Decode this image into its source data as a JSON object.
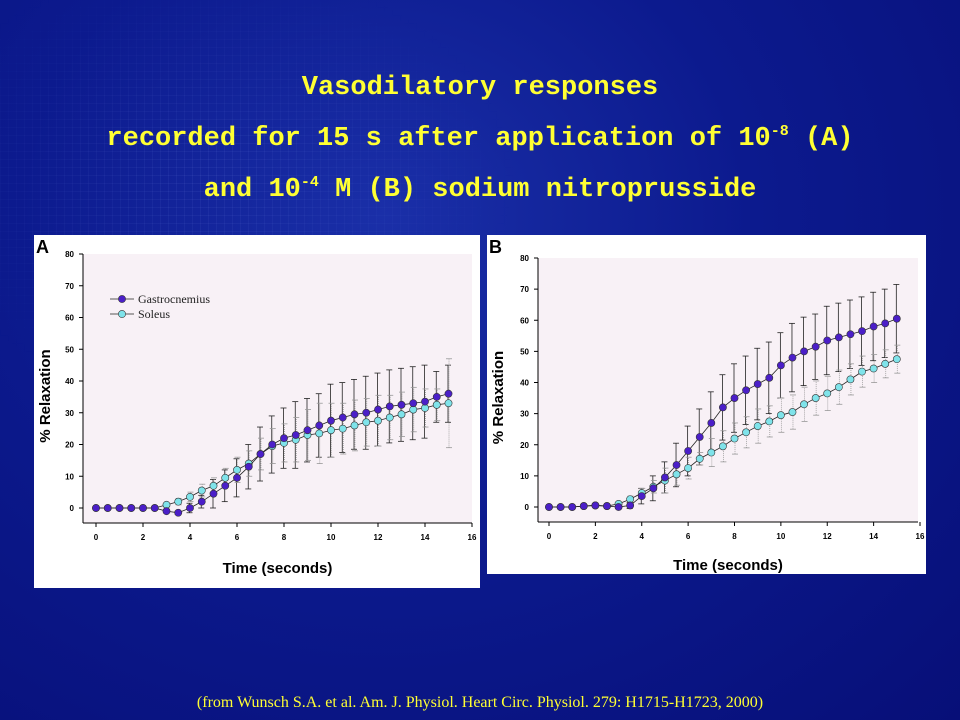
{
  "title": {
    "line1": "Vasodilatory responses",
    "line2_pre": "recorded for 15 s after application of 10",
    "line2_exp": "-8",
    "line2_post": " (A)",
    "line3_pre": "and 10",
    "line3_exp": "-4",
    "line3_post": " M (B) sodium nitroprusside"
  },
  "citation": "(from Wunsch S.A. et al. Am. J. Physiol. Heart Circ. Physiol. 279: H1715-H1723, 2000)",
  "colors": {
    "gastrocnemius": "#4b1fc8",
    "soleus": "#7fe3ea",
    "title": "#ffff33",
    "plot_bg": "#f8f1f6"
  },
  "chart_data": [
    {
      "type": "line",
      "panel_label": "A",
      "xlabel": "Time (seconds)",
      "ylabel": "% Relaxation",
      "xlim": [
        0,
        16
      ],
      "ylim": [
        -5,
        80
      ],
      "xticks": [
        0,
        2,
        4,
        6,
        8,
        10,
        12,
        14,
        16
      ],
      "yticks": [
        0,
        10,
        20,
        30,
        40,
        50,
        60,
        70,
        80
      ],
      "legend": "top-left",
      "grid": false,
      "x": [
        0,
        0.5,
        1,
        1.5,
        2,
        2.5,
        3,
        3.5,
        4,
        4.5,
        5,
        5.5,
        6,
        6.5,
        7,
        7.5,
        8,
        8.5,
        9,
        9.5,
        10,
        10.5,
        11,
        11.5,
        12,
        12.5,
        13,
        13.5,
        14,
        14.5,
        15
      ],
      "series": [
        {
          "name": "Gastrocnemius",
          "values": [
            0,
            0,
            0,
            0,
            0,
            0,
            -1,
            -1.5,
            0,
            2,
            4.5,
            7,
            9.5,
            13,
            17,
            20,
            22,
            23,
            24.5,
            26,
            27.5,
            28.5,
            29.5,
            30,
            31,
            32,
            32.5,
            33,
            33.5,
            35,
            36
          ],
          "error": [
            0,
            0,
            0,
            0,
            0,
            0,
            0.5,
            0.5,
            1.5,
            2,
            4.5,
            5,
            6,
            7,
            8.5,
            9,
            9.5,
            10.5,
            10,
            10,
            11.5,
            11,
            11,
            11.5,
            11.5,
            11.5,
            11.5,
            11.5,
            11.5,
            8,
            9
          ]
        },
        {
          "name": "Soleus",
          "values": [
            0,
            0,
            0,
            0,
            0,
            0,
            1,
            2,
            3.5,
            5.5,
            7,
            9.5,
            12,
            14,
            17,
            19.5,
            20.5,
            21.5,
            23,
            23.5,
            24.5,
            25,
            26,
            27,
            27.5,
            28.5,
            29.5,
            31,
            31.5,
            32.5,
            33
          ],
          "error": [
            0,
            0,
            0,
            0,
            0,
            0,
            0.5,
            1,
            1.5,
            2,
            2.5,
            3,
            4,
            4,
            5,
            5.5,
            6,
            7,
            8,
            9.5,
            8.5,
            8,
            8,
            7.5,
            8,
            7,
            7,
            7,
            6,
            5,
            14
          ]
        }
      ]
    },
    {
      "type": "line",
      "panel_label": "B",
      "xlabel": "Time (seconds)",
      "ylabel": "% Relaxation",
      "xlim": [
        0,
        16
      ],
      "ylim": [
        -5,
        80
      ],
      "xticks": [
        0,
        2,
        4,
        6,
        8,
        10,
        12,
        14,
        16
      ],
      "yticks": [
        0,
        10,
        20,
        30,
        40,
        50,
        60,
        70,
        80
      ],
      "grid": false,
      "x": [
        0,
        0.5,
        1,
        1.5,
        2,
        2.5,
        3,
        3.5,
        4,
        4.5,
        5,
        5.5,
        6,
        6.5,
        7,
        7.5,
        8,
        8.5,
        9,
        9.5,
        10,
        10.5,
        11,
        11.5,
        12,
        12.5,
        13,
        13.5,
        14,
        14.5,
        15
      ],
      "series": [
        {
          "name": "Gastrocnemius",
          "values": [
            0,
            0,
            0,
            0.3,
            0.5,
            0.3,
            0,
            0.5,
            3.5,
            6,
            9.5,
            13.5,
            18,
            22.5,
            27,
            32,
            35,
            37.5,
            39.5,
            41.5,
            45.5,
            48,
            50,
            51.5,
            53.5,
            54.5,
            55.5,
            56.5,
            58,
            59,
            60.5
          ],
          "error": [
            0,
            0,
            0,
            0,
            0,
            0,
            0.5,
            1,
            2.5,
            4,
            5,
            7,
            8,
            9,
            10,
            10.5,
            11,
            11,
            11.5,
            11.5,
            10.5,
            11,
            11,
            10.5,
            11,
            11,
            11,
            11,
            11,
            11,
            11
          ]
        },
        {
          "name": "Soleus",
          "values": [
            0,
            0,
            0,
            0.3,
            0.5,
            0.3,
            1,
            2.5,
            4.5,
            6.5,
            8.5,
            10.5,
            12.5,
            15.5,
            17.5,
            19.5,
            22,
            24,
            26,
            27.5,
            29.5,
            30.5,
            33,
            35,
            36.5,
            38.5,
            41,
            43.5,
            44.5,
            46,
            47.5
          ],
          "error": [
            0,
            0,
            0,
            0,
            0,
            0,
            0.5,
            1,
            1.5,
            2,
            4,
            3.5,
            3.5,
            2,
            4.5,
            5,
            5,
            5,
            5.5,
            5,
            5.5,
            5.5,
            5.5,
            5.5,
            5.5,
            5.5,
            5,
            5,
            4.5,
            4.5,
            4.5
          ]
        }
      ]
    }
  ]
}
